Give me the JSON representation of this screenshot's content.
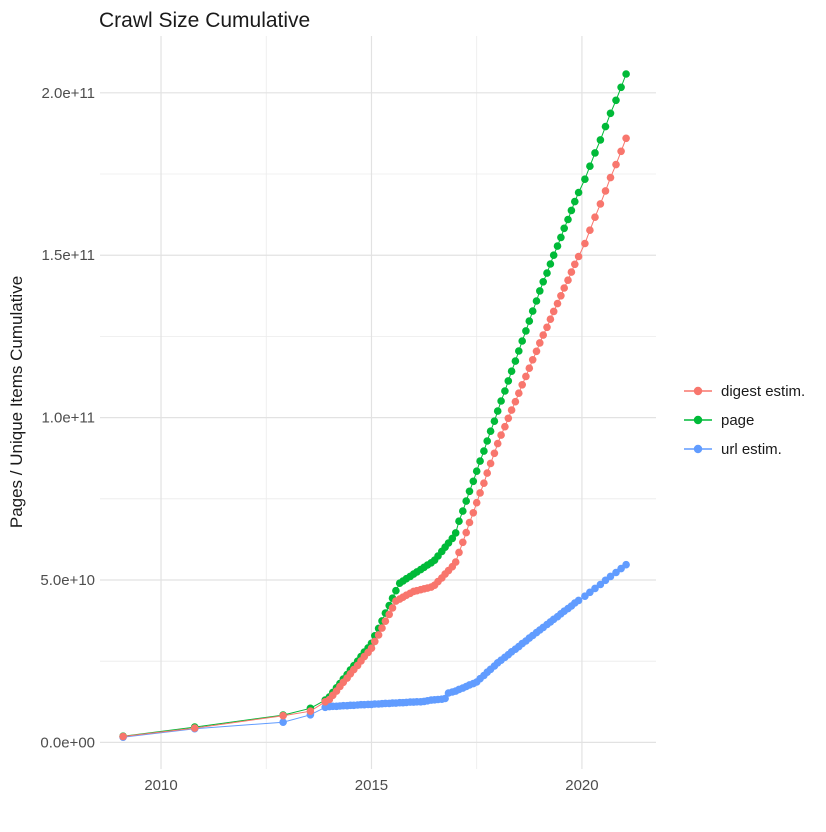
{
  "title": "Crawl Size Cumulative",
  "y_axis": {
    "label": "Pages / Unique Items Cumulative",
    "tick_labels": [
      "0.0e+00",
      "5.0e+10",
      "1.0e+11",
      "1.5e+11",
      "2.0e+11"
    ],
    "tick_values_e9": [
      0,
      50,
      100,
      150,
      200
    ],
    "minor_values_e9": [
      25,
      75,
      125,
      175
    ]
  },
  "x_axis": {
    "tick_labels": [
      "2010",
      "2015",
      "2020"
    ],
    "tick_years": [
      2010,
      2015,
      2020
    ],
    "minor_years": [
      2012.5,
      2017.5
    ]
  },
  "legend": {
    "items": [
      {
        "label": "digest estim.",
        "color": "#F8766D"
      },
      {
        "label": "page",
        "color": "#00BA38"
      },
      {
        "label": "url estim.",
        "color": "#619CFF"
      }
    ]
  },
  "chart_data": {
    "type": "scatter",
    "title": "Crawl Size Cumulative",
    "xlabel": "",
    "ylabel": "Pages / Unique Items Cumulative",
    "legend_position": "right",
    "grid": true,
    "xlim": [
      2008.55,
      2021.76
    ],
    "ylim_e9": [
      -8.2,
      217.5
    ],
    "y_unit_multiplier": 1000000000.0,
    "x": [
      2009.1,
      2010.8,
      2012.9,
      2013.55,
      2013.9,
      2014.0,
      2014.08,
      2014.17,
      2014.25,
      2014.33,
      2014.42,
      2014.5,
      2014.58,
      2014.67,
      2014.75,
      2014.83,
      2014.92,
      2015.0,
      2015.08,
      2015.17,
      2015.25,
      2015.33,
      2015.42,
      2015.5,
      2015.58,
      2015.67,
      2015.75,
      2015.83,
      2015.92,
      2016.0,
      2016.08,
      2016.17,
      2016.25,
      2016.33,
      2016.42,
      2016.5,
      2016.58,
      2016.67,
      2016.75,
      2016.83,
      2016.92,
      2017.0,
      2017.08,
      2017.17,
      2017.25,
      2017.33,
      2017.42,
      2017.5,
      2017.58,
      2017.67,
      2017.75,
      2017.83,
      2017.92,
      2018.0,
      2018.08,
      2018.17,
      2018.25,
      2018.33,
      2018.42,
      2018.5,
      2018.58,
      2018.67,
      2018.75,
      2018.83,
      2018.92,
      2019.0,
      2019.08,
      2019.17,
      2019.25,
      2019.33,
      2019.42,
      2019.5,
      2019.58,
      2019.67,
      2019.75,
      2019.83,
      2019.92,
      2020.07,
      2020.19,
      2020.31,
      2020.44,
      2020.56,
      2020.68,
      2020.81,
      2020.93,
      2021.05
    ],
    "series": [
      {
        "name": "digest estim.",
        "color": "#F8766D",
        "values_e9": [
          1.8,
          4.4,
          8.2,
          9.6,
          12.5,
          13.2,
          14.5,
          15.8,
          17.2,
          18.5,
          19.8,
          21.1,
          22.4,
          23.7,
          25.1,
          26.4,
          27.7,
          29.0,
          31.1,
          33.1,
          35.2,
          37.3,
          39.4,
          41.4,
          43.5,
          44.1,
          44.7,
          45.3,
          45.9,
          46.5,
          46.7,
          47.0,
          47.3,
          47.5,
          47.8,
          48.4,
          49.5,
          50.6,
          51.8,
          52.9,
          54.1,
          55.5,
          58.5,
          61.6,
          64.6,
          67.7,
          70.7,
          73.8,
          76.8,
          79.8,
          82.9,
          85.9,
          89.0,
          92.0,
          94.6,
          97.2,
          99.8,
          102.3,
          104.9,
          107.5,
          110.1,
          112.7,
          115.2,
          117.8,
          120.4,
          123.0,
          125.4,
          127.8,
          130.3,
          132.7,
          135.1,
          137.5,
          139.9,
          142.3,
          144.8,
          147.2,
          149.6,
          153.6,
          157.7,
          161.7,
          165.8,
          169.8,
          173.9,
          177.9,
          182.0,
          186.0
        ]
      },
      {
        "name": "page",
        "color": "#00BA38",
        "values_e9": [
          1.9,
          4.7,
          8.4,
          10.5,
          13.0,
          14.0,
          15.4,
          16.8,
          18.1,
          19.5,
          20.9,
          22.3,
          23.6,
          25.0,
          26.4,
          27.8,
          29.1,
          30.5,
          32.8,
          35.1,
          37.4,
          39.8,
          42.1,
          44.4,
          46.7,
          49.0,
          49.7,
          50.4,
          51.1,
          51.8,
          52.5,
          53.2,
          53.9,
          54.6,
          55.3,
          56.1,
          57.4,
          58.8,
          60.1,
          61.4,
          62.8,
          64.5,
          68.1,
          71.2,
          74.3,
          77.3,
          80.4,
          83.5,
          86.6,
          89.7,
          92.8,
          95.8,
          98.9,
          102.0,
          105.1,
          108.2,
          111.3,
          114.3,
          117.4,
          120.5,
          123.6,
          126.7,
          129.7,
          132.8,
          135.9,
          139.0,
          141.8,
          144.5,
          147.3,
          150.0,
          152.8,
          155.5,
          158.3,
          161.0,
          163.8,
          166.5,
          169.3,
          173.4,
          177.4,
          181.5,
          185.5,
          189.6,
          193.7,
          197.7,
          201.7,
          205.8
        ]
      },
      {
        "name": "url estim.",
        "color": "#619CFF",
        "values_e9": [
          1.6,
          4.2,
          6.2,
          8.5,
          10.8,
          11.0,
          11.1,
          11.1,
          11.2,
          11.3,
          11.3,
          11.4,
          11.4,
          11.5,
          11.6,
          11.6,
          11.7,
          11.7,
          11.8,
          11.8,
          11.9,
          12.0,
          12.0,
          12.1,
          12.1,
          12.2,
          12.2,
          12.3,
          12.4,
          12.4,
          12.5,
          12.5,
          12.6,
          12.8,
          13.0,
          13.1,
          13.2,
          13.3,
          13.5,
          15.2,
          15.5,
          15.8,
          16.3,
          16.7,
          17.2,
          17.7,
          18.1,
          18.6,
          19.6,
          20.6,
          21.6,
          22.5,
          23.5,
          24.5,
          25.3,
          26.2,
          27.0,
          27.9,
          28.7,
          29.5,
          30.4,
          31.2,
          32.1,
          32.9,
          33.8,
          34.6,
          35.4,
          36.3,
          37.1,
          37.9,
          38.7,
          39.6,
          40.4,
          41.2,
          42.0,
          42.9,
          43.7,
          45.0,
          46.2,
          47.4,
          48.6,
          49.9,
          51.1,
          52.3,
          53.5,
          54.7
        ]
      }
    ]
  },
  "style": {
    "grid_major_color": "#e2e2e2",
    "grid_minor_color": "#ebebeb",
    "tick_text_color": "#4d4d4d"
  }
}
